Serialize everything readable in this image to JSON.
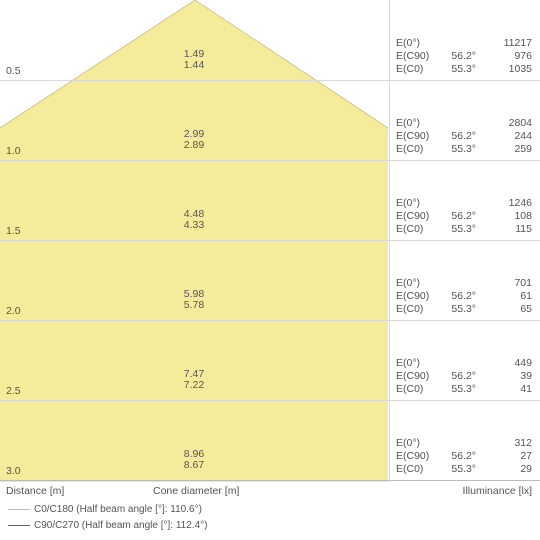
{
  "rows": [
    {
      "distance": "0.5",
      "d1": "1.49",
      "d2": "1.44",
      "e0": "11217",
      "ec90": "976",
      "ec0": "1035"
    },
    {
      "distance": "1.0",
      "d1": "2.99",
      "d2": "2.89",
      "e0": "2804",
      "ec90": "244",
      "ec0": "259"
    },
    {
      "distance": "1.5",
      "d1": "4.48",
      "d2": "4.33",
      "e0": "1246",
      "ec90": "108",
      "ec0": "115"
    },
    {
      "distance": "2.0",
      "d1": "5.98",
      "d2": "5.78",
      "e0": "701",
      "ec90": "61",
      "ec0": "65"
    },
    {
      "distance": "2.5",
      "d1": "7.47",
      "d2": "7.22",
      "e0": "449",
      "ec90": "39",
      "ec0": "41"
    },
    {
      "distance": "3.0",
      "d1": "8.96",
      "d2": "8.67",
      "e0": "312",
      "ec90": "27",
      "ec0": "29"
    }
  ],
  "labels": {
    "e0": "E(0°)",
    "ec90": "E(C90)",
    "ec0": "E(C0)",
    "angle_c90": "56.2°",
    "angle_c0": "55.3°"
  },
  "footer": {
    "distance": "Distance [m]",
    "cone": "Cone diameter [m]",
    "illuminance": "Illuminance [lx]"
  },
  "legend": [
    {
      "label": "C0/C180 (Half beam angle [°]: 110.6°)",
      "color": "#e8b87a"
    },
    {
      "label": "C90/C270 (Half beam angle [°]: 112.4°)",
      "color": "#666666"
    }
  ],
  "colors": {
    "cone_fill": "#f5ec9b",
    "grid": "#d8d8d8",
    "text": "#555555"
  }
}
